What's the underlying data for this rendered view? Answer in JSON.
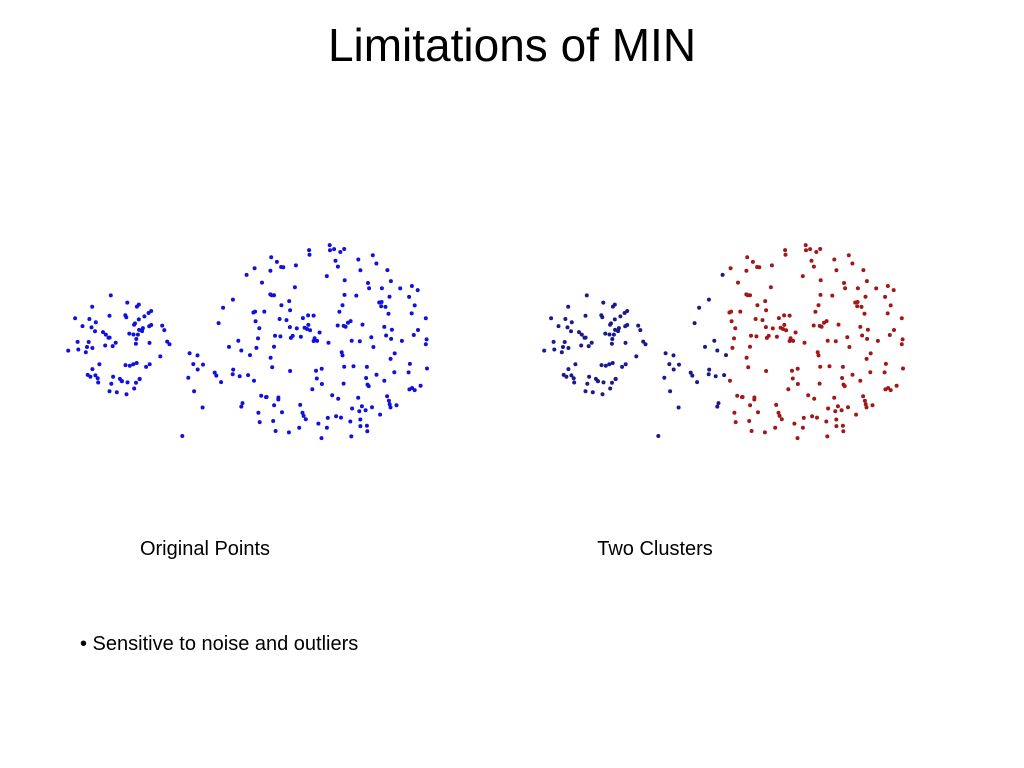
{
  "slide": {
    "title": "Limitations of MIN",
    "captions": [
      "Original Points",
      "Two Clusters"
    ],
    "bullets": [
      "• Sensitive to noise and outliers"
    ]
  }
}
